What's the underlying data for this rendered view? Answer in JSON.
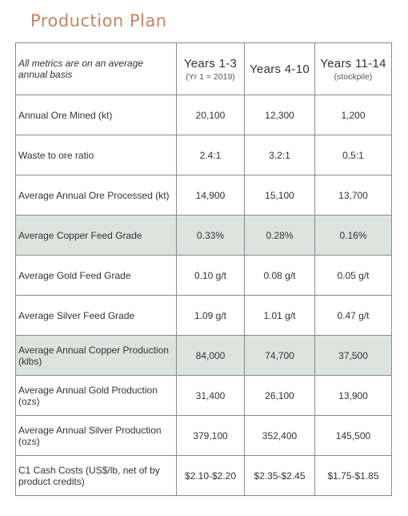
{
  "header": {
    "title": "Production Plan"
  },
  "table": {
    "note": "All metrics are on an average annual basis",
    "columns": [
      {
        "title": "Years 1-3",
        "subtitle": "(Yr 1 = 2019)"
      },
      {
        "title": "Years 4-10"
      },
      {
        "title": "Years 11-14",
        "subtitle": "(stockpile)"
      }
    ],
    "rows": [
      [
        "Annual Ore Mined (kt)",
        "20,100",
        "12,300",
        "1,200"
      ],
      [
        "Waste to ore ratio",
        "2.4:1",
        "3.2:1",
        "0.5:1"
      ],
      [
        "Average Annual Ore Processed (kt)",
        "14,900",
        "15,100",
        "13,700"
      ],
      [
        "Average Copper Feed Grade",
        "0.33%",
        "0.28%",
        "0.16%"
      ],
      [
        "Average Gold Feed Grade",
        "0.10 g/t",
        "0.08 g/t",
        "0.05 g/t"
      ],
      [
        "Average Silver Feed Grade",
        "1.09 g/t",
        "1.01 g/t",
        "0.47 g/t"
      ],
      [
        "Average Annual Copper Production (klbs)",
        "84,000",
        "74,700",
        "37,500"
      ],
      [
        "Average Annual Gold Production (ozs)",
        "31,400",
        "26,100",
        "13,900"
      ],
      [
        "Average Annual Silver Production (ozs)",
        "379,100",
        "352,400",
        "145,500"
      ],
      [
        "C1 Cash Costs (US$/lb, net of by product credits)",
        "$2.10-$2.20",
        "$2.35-$2.45",
        "$1.75-$1.85"
      ]
    ]
  }
}
